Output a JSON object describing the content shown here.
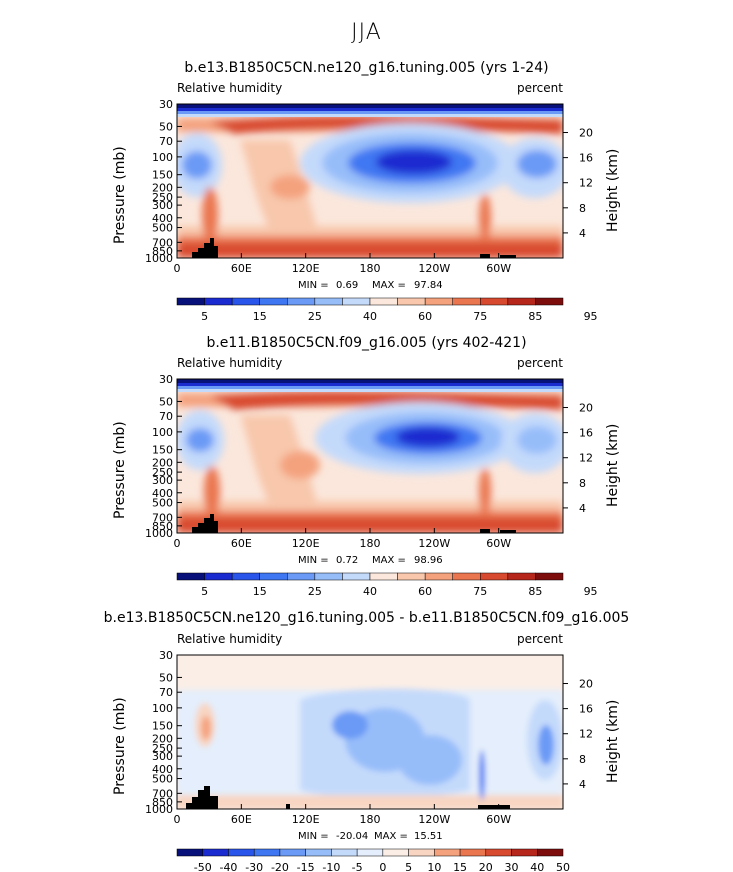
{
  "figure": {
    "season": "JJA",
    "colors": {
      "rh": [
        "#08107a",
        "#1a2bd0",
        "#2a55ea",
        "#3f77f2",
        "#6a9af6",
        "#97bdf9",
        "#c4dafb",
        "#fbe7dc",
        "#f8c7ac",
        "#f4a27e",
        "#ea7650",
        "#d84a2f",
        "#b7261b",
        "#7d0d0d"
      ],
      "diff": [
        "#08107a",
        "#1a2bd0",
        "#2a55ea",
        "#3f77f2",
        "#6a9af6",
        "#97bdf9",
        "#c4dafb",
        "#e4eefc",
        "#fbeee6",
        "#f8d5c2",
        "#f4a27e",
        "#ea7650",
        "#d84a2f",
        "#b7261b",
        "#7d0d0d"
      ]
    }
  },
  "chart_data": [
    {
      "type": "contour",
      "title": "b.e13.B1850C5CN.ne120_g16.tuning.005 (yrs 1-24)",
      "variable": "Relative humidity",
      "units": "percent",
      "ylabel": "Pressure (mb)",
      "ylabel_right": "Height (km)",
      "x_ticks": [
        "0",
        "60E",
        "120E",
        "180",
        "120W",
        "60W"
      ],
      "p_ticks": [
        "30",
        "50",
        "70",
        "100",
        "150",
        "200",
        "250",
        "300",
        "400",
        "500",
        "700",
        "850",
        "1000"
      ],
      "p_values": [
        30,
        50,
        70,
        100,
        150,
        200,
        250,
        300,
        400,
        500,
        700,
        850,
        1000
      ],
      "h_ticks": [
        "20",
        "16",
        "12",
        "8",
        "4"
      ],
      "min_label": "MIN =",
      "min": "0.69",
      "max_label": "MAX =",
      "max": "97.84",
      "colorbar_labels": [
        "5",
        "15",
        "25",
        "40",
        "60",
        "75",
        "85",
        "95"
      ]
    },
    {
      "type": "contour",
      "title": "b.e11.B1850C5CN.f09_g16.005 (yrs 402-421)",
      "variable": "Relative humidity",
      "units": "percent",
      "ylabel": "Pressure (mb)",
      "ylabel_right": "Height (km)",
      "x_ticks": [
        "0",
        "60E",
        "120E",
        "180",
        "120W",
        "60W"
      ],
      "p_ticks": [
        "30",
        "50",
        "70",
        "100",
        "150",
        "200",
        "250",
        "300",
        "400",
        "500",
        "700",
        "850",
        "1000"
      ],
      "p_values": [
        30,
        50,
        70,
        100,
        150,
        200,
        250,
        300,
        400,
        500,
        700,
        850,
        1000
      ],
      "h_ticks": [
        "20",
        "16",
        "12",
        "8",
        "4"
      ],
      "min_label": "MIN =",
      "min": "0.72",
      "max_label": "MAX =",
      "max": "98.96",
      "colorbar_labels": [
        "5",
        "15",
        "25",
        "40",
        "60",
        "75",
        "85",
        "95"
      ]
    },
    {
      "type": "contour",
      "title": "b.e13.B1850C5CN.ne120_g16.tuning.005 - b.e11.B1850C5CN.f09_g16.005",
      "variable": "Relative humidity",
      "units": "percent",
      "ylabel": "Pressure (mb)",
      "ylabel_right": "Height (km)",
      "x_ticks": [
        "0",
        "60E",
        "120E",
        "180",
        "120W",
        "60W"
      ],
      "p_ticks": [
        "30",
        "50",
        "70",
        "100",
        "150",
        "200",
        "250",
        "300",
        "400",
        "500",
        "700",
        "850",
        "1000"
      ],
      "p_values": [
        30,
        50,
        70,
        100,
        150,
        200,
        250,
        300,
        400,
        500,
        700,
        850,
        1000
      ],
      "h_ticks": [
        "20",
        "16",
        "12",
        "8",
        "4"
      ],
      "min_label": "MIN =",
      "min": "-20.04",
      "max_label": "MAX =",
      "max": "15.51",
      "colorbar_labels": [
        "-50",
        "-40",
        "-30",
        "-20",
        "-15",
        "-10",
        "-5",
        "0",
        "5",
        "10",
        "15",
        "20",
        "30",
        "40",
        "50"
      ]
    }
  ]
}
